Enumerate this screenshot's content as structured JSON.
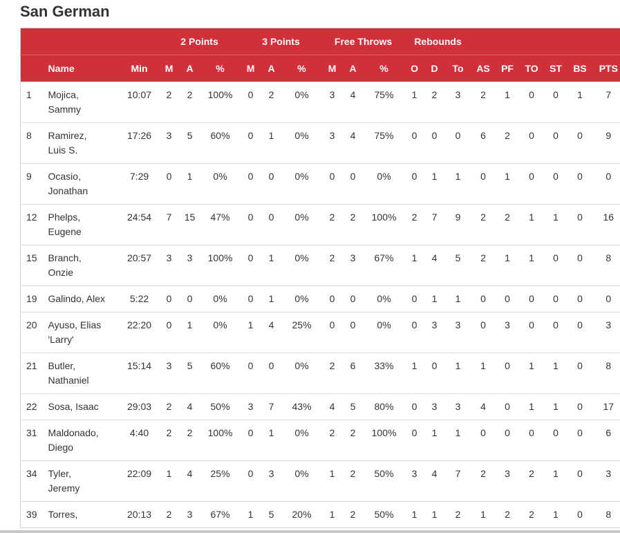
{
  "team": {
    "name": "San German"
  },
  "groups": {
    "two_points": "2 Points",
    "three_points": "3 Points",
    "free_throws": "Free Throws",
    "rebounds": "Rebounds"
  },
  "columns": [
    "",
    "Name",
    "Min",
    "M",
    "A",
    "%",
    "M",
    "A",
    "%",
    "M",
    "A",
    "%",
    "O",
    "D",
    "To",
    "AS",
    "PF",
    "TO",
    "ST",
    "BS",
    "PTS"
  ],
  "players": [
    {
      "num": "1",
      "name1": "Mojica,",
      "name2": "Sammy",
      "min": "10:07",
      "pm2": "2",
      "pa2": "2",
      "pp2": "100%",
      "pm3": "0",
      "pa3": "2",
      "pp3": "0%",
      "ftm": "3",
      "fta": "4",
      "ftp": "75%",
      "o": "1",
      "d": "2",
      "to": "3",
      "as": "2",
      "pf": "1",
      "tov": "0",
      "st": "0",
      "bs": "1",
      "pts": "7"
    },
    {
      "num": "8",
      "name1": "Ramirez,",
      "name2": "Luis S.",
      "min": "17:26",
      "pm2": "3",
      "pa2": "5",
      "pp2": "60%",
      "pm3": "0",
      "pa3": "1",
      "pp3": "0%",
      "ftm": "3",
      "fta": "4",
      "ftp": "75%",
      "o": "0",
      "d": "0",
      "to": "0",
      "as": "6",
      "pf": "2",
      "tov": "0",
      "st": "0",
      "bs": "0",
      "pts": "9"
    },
    {
      "num": "9",
      "name1": "Ocasio,",
      "name2": "Jonathan",
      "min": "7:29",
      "pm2": "0",
      "pa2": "1",
      "pp2": "0%",
      "pm3": "0",
      "pa3": "0",
      "pp3": "0%",
      "ftm": "0",
      "fta": "0",
      "ftp": "0%",
      "o": "0",
      "d": "1",
      "to": "1",
      "as": "0",
      "pf": "1",
      "tov": "0",
      "st": "0",
      "bs": "0",
      "pts": "0"
    },
    {
      "num": "12",
      "name1": "Phelps,",
      "name2": "Eugene",
      "min": "24:54",
      "pm2": "7",
      "pa2": "15",
      "pp2": "47%",
      "pm3": "0",
      "pa3": "0",
      "pp3": "0%",
      "ftm": "2",
      "fta": "2",
      "ftp": "100%",
      "o": "2",
      "d": "7",
      "to": "9",
      "as": "2",
      "pf": "2",
      "tov": "1",
      "st": "1",
      "bs": "0",
      "pts": "16"
    },
    {
      "num": "15",
      "name1": "Branch,",
      "name2": "Onzie",
      "min": "20:57",
      "pm2": "3",
      "pa2": "3",
      "pp2": "100%",
      "pm3": "0",
      "pa3": "1",
      "pp3": "0%",
      "ftm": "2",
      "fta": "3",
      "ftp": "67%",
      "o": "1",
      "d": "4",
      "to": "5",
      "as": "2",
      "pf": "1",
      "tov": "1",
      "st": "0",
      "bs": "0",
      "pts": "8"
    },
    {
      "num": "19",
      "name1": "Galindo, Alex",
      "name2": "",
      "min": "5:22",
      "pm2": "0",
      "pa2": "0",
      "pp2": "0%",
      "pm3": "0",
      "pa3": "1",
      "pp3": "0%",
      "ftm": "0",
      "fta": "0",
      "ftp": "0%",
      "o": "0",
      "d": "1",
      "to": "1",
      "as": "0",
      "pf": "0",
      "tov": "0",
      "st": "0",
      "bs": "0",
      "pts": "0"
    },
    {
      "num": "20",
      "name1": "Ayuso, Elias",
      "name2": "'Larry'",
      "min": "22:20",
      "pm2": "0",
      "pa2": "1",
      "pp2": "0%",
      "pm3": "1",
      "pa3": "4",
      "pp3": "25%",
      "ftm": "0",
      "fta": "0",
      "ftp": "0%",
      "o": "0",
      "d": "3",
      "to": "3",
      "as": "0",
      "pf": "3",
      "tov": "0",
      "st": "0",
      "bs": "0",
      "pts": "3"
    },
    {
      "num": "21",
      "name1": "Butler,",
      "name2": "Nathaniel",
      "min": "15:14",
      "pm2": "3",
      "pa2": "5",
      "pp2": "60%",
      "pm3": "0",
      "pa3": "0",
      "pp3": "0%",
      "ftm": "2",
      "fta": "6",
      "ftp": "33%",
      "o": "1",
      "d": "0",
      "to": "1",
      "as": "1",
      "pf": "0",
      "tov": "1",
      "st": "1",
      "bs": "0",
      "pts": "8"
    },
    {
      "num": "22",
      "name1": "Sosa, Isaac",
      "name2": "",
      "min": "29:03",
      "pm2": "2",
      "pa2": "4",
      "pp2": "50%",
      "pm3": "3",
      "pa3": "7",
      "pp3": "43%",
      "ftm": "4",
      "fta": "5",
      "ftp": "80%",
      "o": "0",
      "d": "3",
      "to": "3",
      "as": "4",
      "pf": "0",
      "tov": "1",
      "st": "1",
      "bs": "0",
      "pts": "17"
    },
    {
      "num": "31",
      "name1": "Maldonado,",
      "name2": "Diego",
      "min": "4:40",
      "pm2": "2",
      "pa2": "2",
      "pp2": "100%",
      "pm3": "0",
      "pa3": "1",
      "pp3": "0%",
      "ftm": "2",
      "fta": "2",
      "ftp": "100%",
      "o": "0",
      "d": "1",
      "to": "1",
      "as": "0",
      "pf": "0",
      "tov": "0",
      "st": "0",
      "bs": "0",
      "pts": "6"
    },
    {
      "num": "34",
      "name1": "Tyler,",
      "name2": "Jeremy",
      "min": "22:09",
      "pm2": "1",
      "pa2": "4",
      "pp2": "25%",
      "pm3": "0",
      "pa3": "3",
      "pp3": "0%",
      "ftm": "1",
      "fta": "2",
      "ftp": "50%",
      "o": "3",
      "d": "4",
      "to": "7",
      "as": "2",
      "pf": "3",
      "tov": "2",
      "st": "1",
      "bs": "0",
      "pts": "3"
    },
    {
      "num": "39",
      "name1": "Torres,",
      "name2": "",
      "min": "20:13",
      "pm2": "2",
      "pa2": "3",
      "pp2": "67%",
      "pm3": "1",
      "pa3": "5",
      "pp3": "20%",
      "ftm": "1",
      "fta": "2",
      "ftp": "50%",
      "o": "1",
      "d": "1",
      "to": "2",
      "as": "1",
      "pf": "2",
      "tov": "2",
      "st": "1",
      "bs": "0",
      "pts": "8"
    }
  ],
  "colors": {
    "header_bg": "#d0303a",
    "header_text": "#ffffff",
    "body_text": "#333333",
    "row_border": "#dcdcdc"
  }
}
